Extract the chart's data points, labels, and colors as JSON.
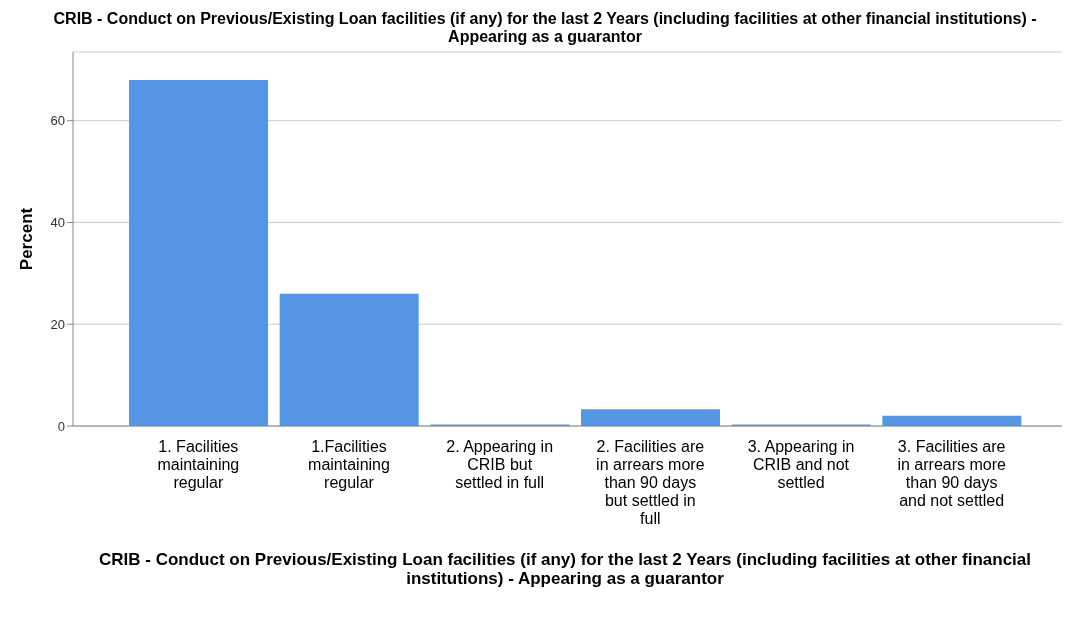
{
  "chart_data": {
    "type": "bar",
    "title": "CRIB  - Conduct on Previous/Existing Loan facilities (if any) for the last 2 Years (including facilities at other financial institutions)  - Appearing as a  guarantor",
    "xlabel": "CRIB  - Conduct on Previous/Existing Loan facilities (if any) for the last 2 Years (including facilities at other financial institutions)  - Appearing as a  guarantor",
    "ylabel": "Percent",
    "categories": [
      "1. Facilities maintaining regular",
      "1.Facilities maintaining regular",
      "2. Appearing in CRIB but settled in full",
      "2. Facilities are in arrears more than 90 days but settled in full",
      "3. Appearing in CRIB and not settled",
      "3. Facilities are in arrears more than 90 days and not settled"
    ],
    "values": [
      68.0,
      26.0,
      0.3,
      3.3,
      0.3,
      2.0
    ],
    "color": "#5596e4",
    "ylim": [
      0,
      73.5
    ],
    "yticks": [
      0,
      20,
      40,
      60
    ],
    "grid": "y"
  }
}
